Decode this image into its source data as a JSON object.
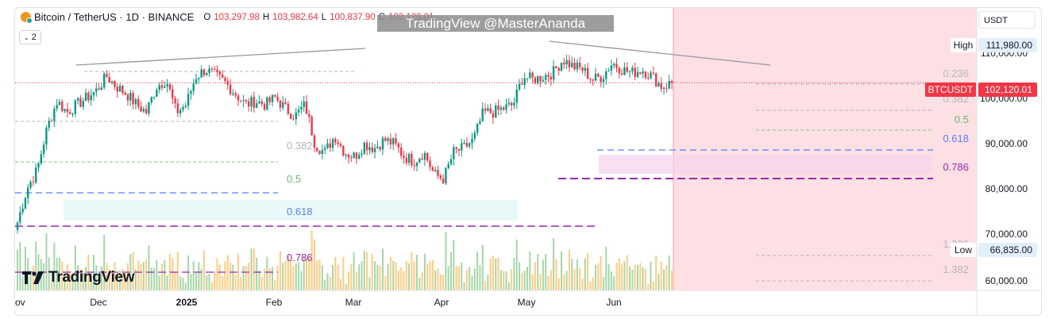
{
  "header": {
    "symbol": "Bitcoin / TetherUS · 1D · BINANCE",
    "open_label": "O",
    "open_value": "103,297.98",
    "high_label": "H",
    "high_value": "103,982.64",
    "low_label": "L",
    "low_value": "100,837.90",
    "close_label": "C",
    "close_value": "102,120.01",
    "collapse_count": "2"
  },
  "watermark": "TradingView @MasterAnanda",
  "currency_selector": "USDT",
  "logo_text": "TradingView",
  "colors": {
    "up": "#089981",
    "down": "#f23645",
    "volume_up": "#a5d6a7",
    "volume_down": "#ffcc80",
    "highlight_zone": "#fde0e4",
    "fib_618": "#2962ff",
    "fib_786": "#9c27b0"
  },
  "chart_data": {
    "type": "candlestick",
    "y_scale": "log",
    "ylim": [
      57000,
      126000
    ],
    "y_ticks": [
      "60,000.00",
      "70,000.00",
      "80,000.00",
      "90,000.00",
      "100,000.00",
      "110,000.00"
    ],
    "x_ticks": [
      "ov",
      "Dec",
      "2025",
      "Feb",
      "Mar",
      "Apr",
      "May",
      "Jun"
    ],
    "price_markers": [
      {
        "label": "High",
        "value": "111,980.00"
      },
      {
        "label": "BTCUSDT",
        "value": "102,120.01"
      },
      {
        "label": "Low",
        "value": "66,835.00"
      }
    ],
    "fib_left": [
      {
        "ratio": "0.382"
      },
      {
        "ratio": "0.5"
      },
      {
        "ratio": "0.618"
      },
      {
        "ratio": "0.786"
      }
    ],
    "fib_right": [
      {
        "ratio": "0.236"
      },
      {
        "ratio": "0.382"
      },
      {
        "ratio": "0.5"
      },
      {
        "ratio": "0.618"
      },
      {
        "ratio": "0.786"
      },
      {
        "ratio": "1.236"
      },
      {
        "ratio": "1.382"
      }
    ],
    "series": [
      {
        "close": [
          69000,
          76000,
          80000,
          90000,
          97000,
          94000,
          96000,
          98000,
          100000,
          104000,
          101000,
          99000,
          96000,
          94000,
          101000,
          103000,
          94000,
          96000,
          104000,
          106000,
          104000,
          102000,
          99000,
          96000,
          97000,
          96000,
          98000,
          95000,
          93000,
          96000,
          86000,
          84000,
          88000,
          84000,
          83000,
          86000,
          85000,
          87000,
          86000,
          83000,
          82000,
          84000,
          79000,
          78000,
          84000,
          85000,
          87000,
          94000,
          94000,
          95000,
          96000,
          104000,
          103000,
          104000,
          105000,
          109000,
          107000,
          106000,
          103000,
          104000,
          108000,
          106000,
          105000,
          106000,
          104000,
          101000,
          102120
        ]
      }
    ]
  }
}
